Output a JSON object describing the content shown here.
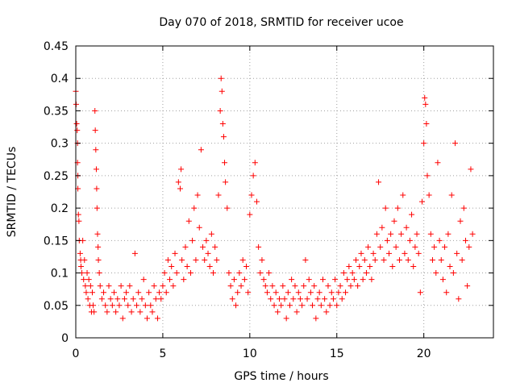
{
  "chart_data": {
    "type": "scatter",
    "title": "Day 070 of 2018, SRMTID for receiver ucoe",
    "xlabel": "GPS time / hours",
    "ylabel": "SRMTID / TECUs",
    "xlim": [
      0,
      24
    ],
    "ylim": [
      0,
      0.45
    ],
    "xticks": [
      0,
      5,
      10,
      15,
      20
    ],
    "yticks": [
      0,
      0.05,
      0.1,
      0.15,
      0.2,
      0.25,
      0.3,
      0.35,
      0.4,
      0.45
    ],
    "xtick_labels": [
      "0",
      "5",
      "10",
      "15",
      "20"
    ],
    "ytick_labels": [
      "0",
      "0.05",
      "0.1",
      "0.15",
      "0.2",
      "0.25",
      "0.3",
      "0.35",
      "0.4",
      "0.45"
    ],
    "grid": true,
    "marker": "+",
    "color": "#ff0000",
    "series": [
      {
        "name": "SRMTID",
        "points": [
          [
            0.0,
            0.38
          ],
          [
            0.02,
            0.36
          ],
          [
            0.05,
            0.33
          ],
          [
            0.08,
            0.32
          ],
          [
            0.1,
            0.3
          ],
          [
            0.1,
            0.27
          ],
          [
            0.12,
            0.25
          ],
          [
            0.12,
            0.23
          ],
          [
            0.15,
            0.19
          ],
          [
            0.18,
            0.18
          ],
          [
            0.2,
            0.15
          ],
          [
            0.25,
            0.13
          ],
          [
            0.28,
            0.12
          ],
          [
            0.3,
            0.11
          ],
          [
            0.35,
            0.1
          ],
          [
            0.4,
            0.15
          ],
          [
            0.45,
            0.09
          ],
          [
            0.5,
            0.12
          ],
          [
            0.55,
            0.08
          ],
          [
            0.6,
            0.07
          ],
          [
            0.65,
            0.1
          ],
          [
            0.7,
            0.06
          ],
          [
            0.75,
            0.09
          ],
          [
            0.8,
            0.05
          ],
          [
            0.85,
            0.08
          ],
          [
            0.9,
            0.04
          ],
          [
            0.95,
            0.07
          ],
          [
            1.0,
            0.05
          ],
          [
            1.05,
            0.04
          ],
          [
            1.1,
            0.35
          ],
          [
            1.12,
            0.32
          ],
          [
            1.15,
            0.29
          ],
          [
            1.18,
            0.26
          ],
          [
            1.2,
            0.23
          ],
          [
            1.22,
            0.2
          ],
          [
            1.25,
            0.16
          ],
          [
            1.28,
            0.14
          ],
          [
            1.3,
            0.12
          ],
          [
            1.35,
            0.1
          ],
          [
            1.4,
            0.08
          ],
          [
            1.5,
            0.06
          ],
          [
            1.6,
            0.07
          ],
          [
            1.7,
            0.05
          ],
          [
            1.8,
            0.04
          ],
          [
            1.9,
            0.08
          ],
          [
            2.0,
            0.06
          ],
          [
            2.1,
            0.05
          ],
          [
            2.2,
            0.07
          ],
          [
            2.3,
            0.04
          ],
          [
            2.4,
            0.06
          ],
          [
            2.5,
            0.05
          ],
          [
            2.6,
            0.08
          ],
          [
            2.7,
            0.03
          ],
          [
            2.8,
            0.06
          ],
          [
            2.9,
            0.07
          ],
          [
            3.0,
            0.05
          ],
          [
            3.1,
            0.08
          ],
          [
            3.2,
            0.04
          ],
          [
            3.3,
            0.06
          ],
          [
            3.4,
            0.13
          ],
          [
            3.5,
            0.05
          ],
          [
            3.6,
            0.07
          ],
          [
            3.7,
            0.04
          ],
          [
            3.8,
            0.06
          ],
          [
            3.9,
            0.09
          ],
          [
            4.0,
            0.05
          ],
          [
            4.1,
            0.03
          ],
          [
            4.2,
            0.07
          ],
          [
            4.3,
            0.05
          ],
          [
            4.4,
            0.04
          ],
          [
            4.5,
            0.08
          ],
          [
            4.6,
            0.06
          ],
          [
            4.7,
            0.03
          ],
          [
            4.8,
            0.07
          ],
          [
            4.9,
            0.06
          ],
          [
            5.0,
            0.08
          ],
          [
            5.1,
            0.1
          ],
          [
            5.2,
            0.07
          ],
          [
            5.3,
            0.12
          ],
          [
            5.4,
            0.09
          ],
          [
            5.5,
            0.11
          ],
          [
            5.6,
            0.08
          ],
          [
            5.7,
            0.13
          ],
          [
            5.8,
            0.1
          ],
          [
            5.9,
            0.24
          ],
          [
            6.0,
            0.23
          ],
          [
            6.05,
            0.26
          ],
          [
            6.1,
            0.12
          ],
          [
            6.2,
            0.09
          ],
          [
            6.3,
            0.14
          ],
          [
            6.4,
            0.11
          ],
          [
            6.5,
            0.18
          ],
          [
            6.6,
            0.1
          ],
          [
            6.7,
            0.15
          ],
          [
            6.8,
            0.2
          ],
          [
            6.9,
            0.12
          ],
          [
            7.0,
            0.22
          ],
          [
            7.1,
            0.17
          ],
          [
            7.2,
            0.29
          ],
          [
            7.3,
            0.14
          ],
          [
            7.4,
            0.12
          ],
          [
            7.5,
            0.15
          ],
          [
            7.6,
            0.13
          ],
          [
            7.7,
            0.11
          ],
          [
            7.8,
            0.16
          ],
          [
            7.9,
            0.1
          ],
          [
            8.0,
            0.14
          ],
          [
            8.1,
            0.12
          ],
          [
            8.2,
            0.22
          ],
          [
            8.3,
            0.35
          ],
          [
            8.35,
            0.4
          ],
          [
            8.4,
            0.38
          ],
          [
            8.45,
            0.33
          ],
          [
            8.5,
            0.31
          ],
          [
            8.55,
            0.27
          ],
          [
            8.6,
            0.24
          ],
          [
            8.7,
            0.2
          ],
          [
            8.8,
            0.1
          ],
          [
            8.9,
            0.08
          ],
          [
            9.0,
            0.06
          ],
          [
            9.1,
            0.09
          ],
          [
            9.2,
            0.05
          ],
          [
            9.3,
            0.07
          ],
          [
            9.4,
            0.1
          ],
          [
            9.5,
            0.08
          ],
          [
            9.6,
            0.12
          ],
          [
            9.7,
            0.09
          ],
          [
            9.8,
            0.11
          ],
          [
            9.9,
            0.07
          ],
          [
            10.0,
            0.19
          ],
          [
            10.1,
            0.22
          ],
          [
            10.2,
            0.25
          ],
          [
            10.3,
            0.27
          ],
          [
            10.4,
            0.21
          ],
          [
            10.5,
            0.14
          ],
          [
            10.6,
            0.1
          ],
          [
            10.7,
            0.12
          ],
          [
            10.8,
            0.09
          ],
          [
            10.9,
            0.08
          ],
          [
            11.0,
            0.07
          ],
          [
            11.1,
            0.1
          ],
          [
            11.2,
            0.06
          ],
          [
            11.3,
            0.08
          ],
          [
            11.4,
            0.05
          ],
          [
            11.5,
            0.07
          ],
          [
            11.6,
            0.04
          ],
          [
            11.7,
            0.06
          ],
          [
            11.8,
            0.05
          ],
          [
            11.9,
            0.08
          ],
          [
            12.0,
            0.06
          ],
          [
            12.1,
            0.03
          ],
          [
            12.2,
            0.07
          ],
          [
            12.3,
            0.05
          ],
          [
            12.4,
            0.09
          ],
          [
            12.5,
            0.06
          ],
          [
            12.6,
            0.08
          ],
          [
            12.7,
            0.04
          ],
          [
            12.8,
            0.07
          ],
          [
            12.9,
            0.06
          ],
          [
            13.0,
            0.05
          ],
          [
            13.1,
            0.08
          ],
          [
            13.2,
            0.12
          ],
          [
            13.3,
            0.06
          ],
          [
            13.4,
            0.09
          ],
          [
            13.5,
            0.07
          ],
          [
            13.6,
            0.05
          ],
          [
            13.7,
            0.08
          ],
          [
            13.8,
            0.03
          ],
          [
            13.9,
            0.06
          ],
          [
            14.0,
            0.07
          ],
          [
            14.1,
            0.05
          ],
          [
            14.2,
            0.09
          ],
          [
            14.3,
            0.06
          ],
          [
            14.4,
            0.04
          ],
          [
            14.5,
            0.08
          ],
          [
            14.6,
            0.05
          ],
          [
            14.7,
            0.07
          ],
          [
            14.8,
            0.06
          ],
          [
            14.9,
            0.09
          ],
          [
            15.0,
            0.05
          ],
          [
            15.1,
            0.07
          ],
          [
            15.2,
            0.08
          ],
          [
            15.3,
            0.06
          ],
          [
            15.4,
            0.1
          ],
          [
            15.5,
            0.07
          ],
          [
            15.6,
            0.09
          ],
          [
            15.7,
            0.11
          ],
          [
            15.8,
            0.08
          ],
          [
            15.9,
            0.1
          ],
          [
            16.0,
            0.09
          ],
          [
            16.1,
            0.12
          ],
          [
            16.2,
            0.08
          ],
          [
            16.3,
            0.11
          ],
          [
            16.4,
            0.13
          ],
          [
            16.5,
            0.09
          ],
          [
            16.6,
            0.12
          ],
          [
            16.7,
            0.1
          ],
          [
            16.8,
            0.14
          ],
          [
            16.9,
            0.11
          ],
          [
            17.0,
            0.09
          ],
          [
            17.1,
            0.13
          ],
          [
            17.2,
            0.12
          ],
          [
            17.3,
            0.16
          ],
          [
            17.4,
            0.24
          ],
          [
            17.5,
            0.14
          ],
          [
            17.6,
            0.17
          ],
          [
            17.7,
            0.12
          ],
          [
            17.8,
            0.2
          ],
          [
            17.9,
            0.15
          ],
          [
            18.0,
            0.13
          ],
          [
            18.1,
            0.16
          ],
          [
            18.2,
            0.11
          ],
          [
            18.3,
            0.18
          ],
          [
            18.4,
            0.14
          ],
          [
            18.5,
            0.2
          ],
          [
            18.6,
            0.12
          ],
          [
            18.7,
            0.16
          ],
          [
            18.8,
            0.22
          ],
          [
            18.9,
            0.13
          ],
          [
            19.0,
            0.17
          ],
          [
            19.1,
            0.12
          ],
          [
            19.2,
            0.15
          ],
          [
            19.3,
            0.19
          ],
          [
            19.4,
            0.11
          ],
          [
            19.5,
            0.14
          ],
          [
            19.6,
            0.16
          ],
          [
            19.7,
            0.13
          ],
          [
            19.8,
            0.07
          ],
          [
            19.9,
            0.21
          ],
          [
            20.0,
            0.3
          ],
          [
            20.05,
            0.37
          ],
          [
            20.1,
            0.36
          ],
          [
            20.15,
            0.33
          ],
          [
            20.2,
            0.25
          ],
          [
            20.3,
            0.22
          ],
          [
            20.4,
            0.16
          ],
          [
            20.5,
            0.12
          ],
          [
            20.6,
            0.14
          ],
          [
            20.7,
            0.1
          ],
          [
            20.8,
            0.27
          ],
          [
            20.9,
            0.15
          ],
          [
            21.0,
            0.12
          ],
          [
            21.1,
            0.09
          ],
          [
            21.2,
            0.14
          ],
          [
            21.3,
            0.07
          ],
          [
            21.4,
            0.16
          ],
          [
            21.5,
            0.11
          ],
          [
            21.6,
            0.22
          ],
          [
            21.7,
            0.1
          ],
          [
            21.8,
            0.3
          ],
          [
            21.9,
            0.13
          ],
          [
            22.0,
            0.06
          ],
          [
            22.1,
            0.18
          ],
          [
            22.2,
            0.12
          ],
          [
            22.3,
            0.2
          ],
          [
            22.4,
            0.15
          ],
          [
            22.5,
            0.08
          ],
          [
            22.6,
            0.14
          ],
          [
            22.7,
            0.26
          ],
          [
            22.8,
            0.16
          ]
        ]
      }
    ]
  }
}
